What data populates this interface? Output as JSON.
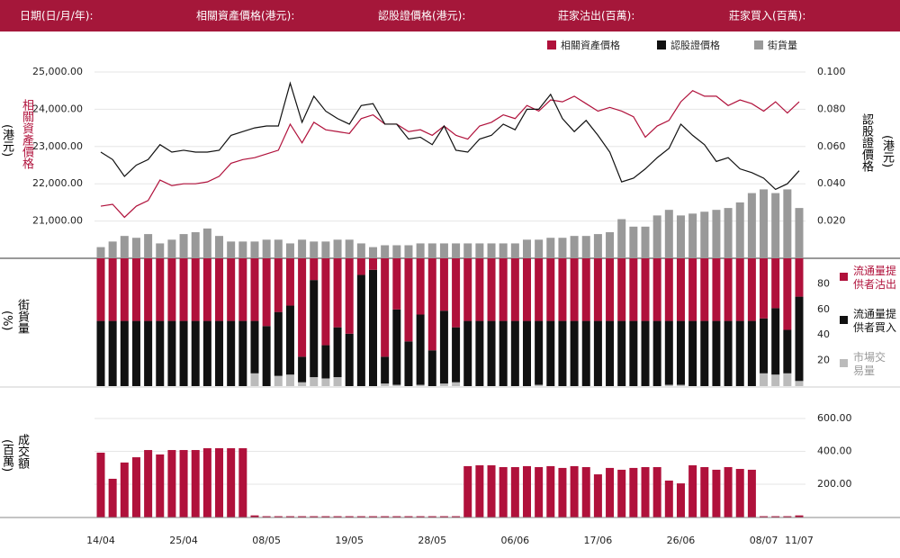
{
  "header": [
    "日期(日/月/年):",
    "相關資產價格(港元):",
    "認股證價格(港元):",
    "莊家沽出(百萬):",
    "莊家買入(百萬):"
  ],
  "chart_data": [
    {
      "type": "line",
      "ylabel": "相關資產價格",
      "ylabel_unit": "(港元)",
      "y2label": "認股證價格",
      "y2label_unit": "(港元)",
      "ylim": [
        20000,
        25000
      ],
      "yticks": [
        {
          "value": 21000,
          "label": "21,000.00"
        },
        {
          "value": 22000,
          "label": "22,000.00"
        },
        {
          "value": 23000,
          "label": "23,000.00"
        },
        {
          "value": 24000,
          "label": "24,000.00"
        },
        {
          "value": 25000,
          "label": "25,000.00"
        }
      ],
      "y2lim": [
        0,
        0.1
      ],
      "y2ticks": [
        {
          "value": 0.02,
          "label": "0.020"
        },
        {
          "value": 0.04,
          "label": "0.040"
        },
        {
          "value": 0.06,
          "label": "0.060"
        },
        {
          "value": 0.08,
          "label": "0.080"
        },
        {
          "value": 0.1,
          "label": "0.100"
        }
      ],
      "y3lim": [
        0,
        100
      ],
      "grid": true,
      "series": [
        {
          "name": "相關資產價格",
          "color": "#b0113b",
          "axis": "y",
          "type": "line",
          "values": [
            21400,
            21450,
            21100,
            21400,
            21550,
            22100,
            21950,
            22000,
            22000,
            22050,
            22200,
            22550,
            22650,
            22700,
            22800,
            22900,
            23600,
            23100,
            23650,
            23450,
            23400,
            23350,
            23750,
            23850,
            23600,
            23600,
            23400,
            23450,
            23300,
            23550,
            23300,
            23200,
            23550,
            23650,
            23850,
            23750,
            24100,
            23950,
            24250,
            24200,
            24350,
            24150,
            23950,
            24050,
            23950,
            23800,
            23250,
            23550,
            23700,
            24200,
            24500,
            24350,
            24350,
            24100,
            24250,
            24150,
            23950,
            24200,
            23900,
            24200
          ]
        },
        {
          "name": "認股證價格",
          "color": "#111111",
          "axis": "y2",
          "type": "line",
          "values": [
            0.057,
            0.053,
            0.044,
            0.05,
            0.053,
            0.061,
            0.057,
            0.058,
            0.057,
            0.057,
            0.058,
            0.066,
            0.068,
            0.07,
            0.071,
            0.071,
            0.094,
            0.073,
            0.087,
            0.079,
            0.075,
            0.072,
            0.082,
            0.083,
            0.072,
            0.072,
            0.064,
            0.065,
            0.061,
            0.071,
            0.058,
            0.057,
            0.064,
            0.066,
            0.072,
            0.069,
            0.08,
            0.08,
            0.088,
            0.075,
            0.068,
            0.074,
            0.066,
            0.057,
            0.041,
            0.043,
            0.048,
            0.054,
            0.059,
            0.072,
            0.066,
            0.061,
            0.052,
            0.054,
            0.048,
            0.046,
            0.043,
            0.037,
            0.04,
            0.047
          ]
        },
        {
          "name": "街貨量",
          "color": "#999999",
          "axis": "y3",
          "type": "bar",
          "values": [
            6,
            9,
            12,
            11,
            13,
            8,
            10,
            13,
            14,
            16,
            12,
            9,
            9,
            9,
            10,
            10,
            8,
            10,
            9,
            9,
            10,
            10,
            8,
            6,
            7,
            7,
            7,
            8,
            8,
            8,
            8,
            8,
            8,
            8,
            8,
            8,
            10,
            10,
            11,
            11,
            12,
            12,
            13,
            14,
            21,
            17,
            17,
            23,
            26,
            23,
            24,
            25,
            26,
            27,
            30,
            35,
            37,
            35,
            37,
            27
          ]
        }
      ]
    },
    {
      "type": "stacked_bar",
      "ylabel": "街貨量",
      "ylabel_unit": "(%)",
      "ylim": [
        0,
        100
      ],
      "yticks": [
        20,
        40,
        60,
        80
      ],
      "series": [
        {
          "name": "流通量提供者沽出",
          "color": "#b0113b",
          "values": [
            49,
            49,
            49,
            49,
            49,
            49,
            49,
            49,
            49,
            49,
            49,
            49,
            49,
            49,
            53,
            42,
            37,
            77,
            17,
            68,
            54,
            59,
            13,
            9,
            77,
            40,
            65,
            44,
            72,
            41,
            54,
            49,
            49,
            49,
            49,
            49,
            49,
            49,
            49,
            49,
            49,
            49,
            49,
            49,
            49,
            49,
            49,
            49,
            49,
            49,
            49,
            49,
            49,
            49,
            49,
            49,
            47,
            39,
            56,
            30
          ]
        },
        {
          "name": "流通量提供者買入",
          "color": "#111111",
          "values": [
            51,
            51,
            51,
            51,
            51,
            51,
            51,
            51,
            51,
            51,
            51,
            51,
            51,
            41,
            47,
            50,
            54,
            20,
            76,
            26,
            39,
            41,
            87,
            91,
            21,
            59,
            35,
            55,
            28,
            57,
            43,
            51,
            51,
            51,
            51,
            51,
            51,
            50,
            51,
            51,
            51,
            51,
            51,
            51,
            51,
            51,
            51,
            51,
            50,
            50,
            51,
            51,
            51,
            51,
            51,
            51,
            43,
            52,
            34,
            66
          ]
        },
        {
          "name": "市場交易量",
          "color": "#bbbbbb",
          "values": [
            0,
            0,
            0,
            0,
            0,
            0,
            0,
            0,
            0,
            0,
            0,
            0,
            0,
            10,
            0,
            8,
            9,
            3,
            7,
            6,
            7,
            0,
            0,
            0,
            2,
            1,
            0,
            1,
            0,
            2,
            3,
            0,
            0,
            0,
            0,
            0,
            0,
            1,
            0,
            0,
            0,
            0,
            0,
            0,
            0,
            0,
            0,
            0,
            1,
            1,
            0,
            0,
            0,
            0,
            0,
            0,
            10,
            9,
            10,
            4
          ]
        }
      ]
    },
    {
      "type": "bar",
      "ylabel": "成交額",
      "ylabel_unit": "(百萬)",
      "ylim": [
        0,
        800
      ],
      "grid": true,
      "color": "#b0113b",
      "yticks": [
        {
          "value": 200,
          "label": "200.00"
        },
        {
          "value": 400,
          "label": "400.00"
        },
        {
          "value": 600,
          "label": "600.00"
        }
      ],
      "categories": [
        "14/04",
        null,
        null,
        null,
        null,
        null,
        null,
        "25/04",
        null,
        null,
        null,
        null,
        null,
        null,
        "08/05",
        null,
        null,
        null,
        null,
        null,
        null,
        "19/05",
        null,
        null,
        null,
        null,
        null,
        null,
        "28/05",
        null,
        null,
        null,
        null,
        null,
        null,
        "06/06",
        null,
        null,
        null,
        null,
        null,
        null,
        "17/06",
        null,
        null,
        null,
        null,
        null,
        null,
        "26/06",
        null,
        null,
        null,
        null,
        null,
        null,
        "08/07",
        null,
        null,
        "11/07"
      ],
      "values": [
        392,
        233,
        332,
        364,
        408,
        381,
        408,
        408,
        408,
        419,
        419,
        419,
        419,
        10,
        5,
        5,
        5,
        5,
        5,
        5,
        5,
        5,
        5,
        5,
        5,
        5,
        5,
        5,
        5,
        5,
        5,
        310,
        315,
        315,
        304,
        304,
        310,
        304,
        310,
        299,
        310,
        304,
        260,
        299,
        288,
        299,
        304,
        304,
        222,
        205,
        315,
        304,
        288,
        304,
        293,
        288,
        5,
        5,
        5,
        10
      ]
    }
  ]
}
